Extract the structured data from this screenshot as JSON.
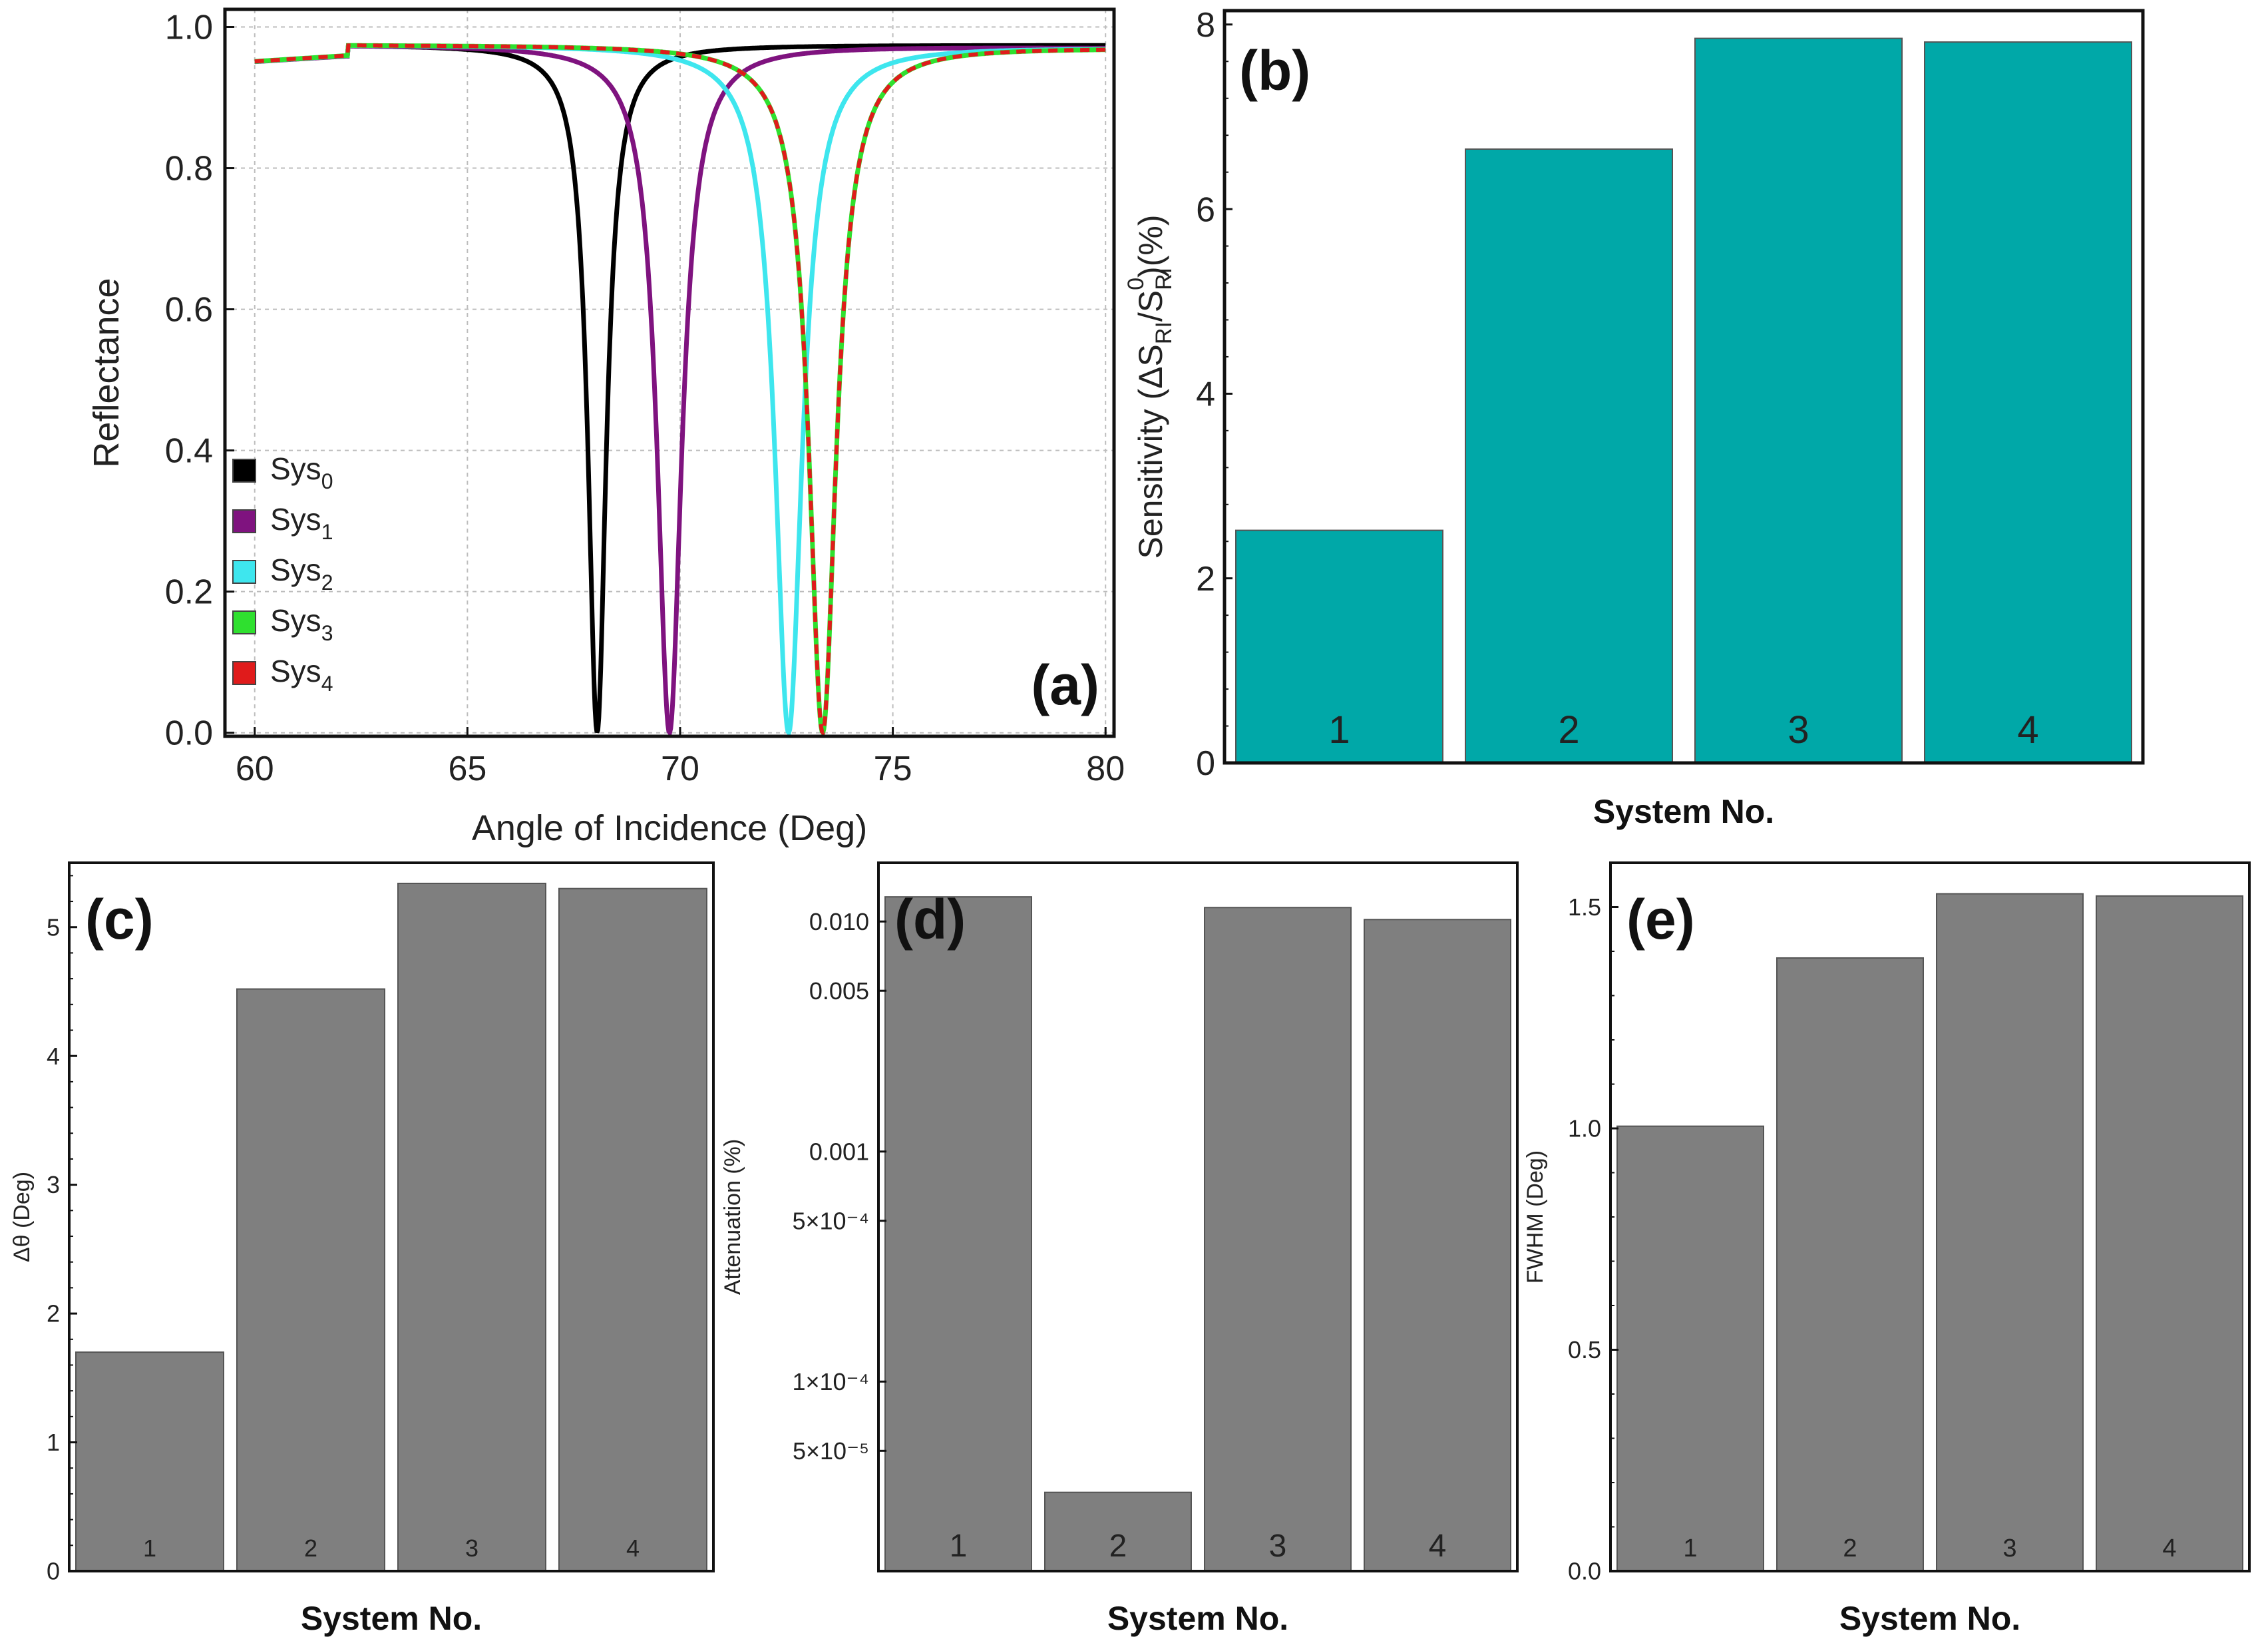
{
  "chart_data": [
    {
      "id": "a",
      "type": "line",
      "panel_label": "(a)",
      "xlabel": "Angle of Incidence (Deg)",
      "ylabel": "Reflectance",
      "xlim": [
        59.3,
        80.2
      ],
      "ylim": [
        -0.005,
        1.025
      ],
      "xticks": [
        "60",
        "65",
        "70",
        "75",
        "80"
      ],
      "yticks": [
        "0.0",
        "0.2",
        "0.4",
        "0.6",
        "0.8",
        "1.0"
      ],
      "grid": true,
      "legend_position": "bottom-left",
      "series": [
        {
          "name": "Sys",
          "sub": "0",
          "color": "#000000",
          "dashed": false,
          "resonance": 68.05,
          "width": 0.52,
          "r_max": 0.975,
          "r_min": 0.0
        },
        {
          "name": "Sys",
          "sub": "1",
          "color": "#7f137f",
          "dashed": false,
          "resonance": 69.75,
          "width": 0.7,
          "r_max": 0.975,
          "r_min": 0.0
        },
        {
          "name": "Sys",
          "sub": "2",
          "color": "#3ee6ee",
          "dashed": false,
          "resonance": 72.55,
          "width": 0.78,
          "r_max": 0.975,
          "r_min": 0.0
        },
        {
          "name": "Sys",
          "sub": "3",
          "color": "#2fe02f",
          "dashed": false,
          "resonance": 73.35,
          "width": 0.78,
          "r_max": 0.975,
          "r_min": 0.0
        },
        {
          "name": "Sys",
          "sub": "4",
          "color": "#e01b1b",
          "dashed": true,
          "resonance": 73.35,
          "width": 0.78,
          "r_max": 0.975,
          "r_min": 0.0
        }
      ]
    },
    {
      "id": "b",
      "type": "bar",
      "panel_label": "(b)",
      "ylabel": "Sensitivity (ΔS_RI/S⁰_RI)(%)",
      "ylabel_parts": [
        "Sensitivity (ΔS",
        "RI",
        "/S",
        "RI",
        "0",
        ")(%)"
      ],
      "xlabel": "System No.",
      "categories": [
        "1",
        "2",
        "3",
        "4"
      ],
      "values": [
        2.52,
        6.65,
        7.85,
        7.81
      ],
      "ylim": [
        0,
        8.15
      ],
      "yticks": [
        "0",
        "2",
        "4",
        "6",
        "8"
      ],
      "bar_color": "#00a8a8",
      "scale": "linear"
    },
    {
      "id": "c",
      "type": "bar",
      "panel_label": "(c)",
      "ylabel": "Δθ (Deg)",
      "xlabel": "System No.",
      "categories": [
        "1",
        "2",
        "3",
        "4"
      ],
      "values": [
        1.7,
        4.52,
        5.34,
        5.3
      ],
      "ylim": [
        0,
        5.5
      ],
      "yticks": [
        "0",
        "1",
        "2",
        "3",
        "4",
        "5"
      ],
      "bar_color": "#7f7f7f",
      "scale": "linear"
    },
    {
      "id": "d",
      "type": "bar",
      "panel_label": "(d)",
      "ylabel": "Attenuation (%)",
      "xlabel": "System No.",
      "categories": [
        "1",
        "2",
        "3",
        "4"
      ],
      "values": [
        0.0128,
        3.3e-05,
        0.0115,
        0.0102
      ],
      "ylim": [
        1.5e-05,
        0.018
      ],
      "yticks": [
        "0.010",
        "0.005",
        "0.001",
        "5×10⁻⁴",
        "1×10⁻⁴",
        "5×10⁻⁵"
      ],
      "ytick_values": [
        0.01,
        0.005,
        0.001,
        0.0005,
        0.0001,
        5e-05
      ],
      "bar_color": "#7f7f7f",
      "scale": "log"
    },
    {
      "id": "e",
      "type": "bar",
      "panel_label": "(e)",
      "ylabel": "FWHM (Deg)",
      "xlabel": "System No.",
      "categories": [
        "1",
        "2",
        "3",
        "4"
      ],
      "values": [
        1.005,
        1.385,
        1.53,
        1.525
      ],
      "ylim": [
        0,
        1.6
      ],
      "yticks": [
        "0.0",
        "0.5",
        "1.0",
        "1.5"
      ],
      "bar_color": "#7f7f7f",
      "scale": "linear"
    }
  ]
}
